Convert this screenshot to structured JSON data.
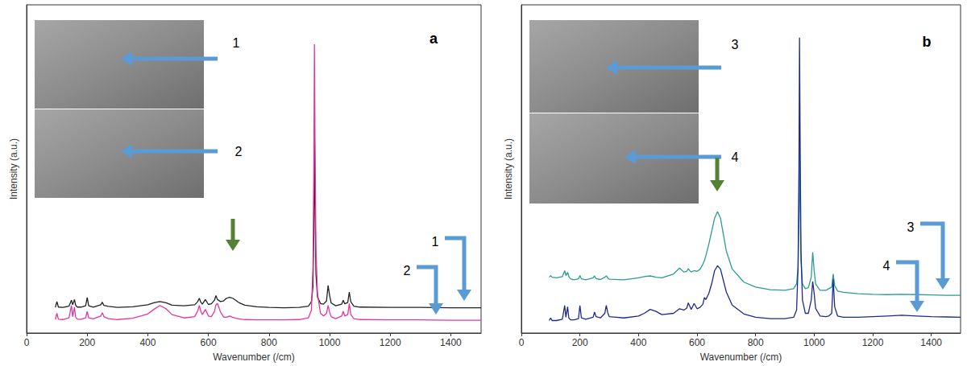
{
  "chart_data": [
    {
      "type": "line",
      "title": "a",
      "xlabel": "Wavenumber (/cm)",
      "ylabel": "Intensity (a.u.)",
      "x": [
        95,
        100,
        105,
        120,
        140,
        148,
        152,
        158,
        162,
        168,
        180,
        195,
        200,
        205,
        220,
        245,
        250,
        255,
        270,
        300,
        350,
        400,
        420,
        440,
        460,
        480,
        520,
        555,
        565,
        570,
        575,
        580,
        590,
        600,
        610,
        620,
        625,
        630,
        640,
        650,
        660,
        670,
        680,
        690,
        700,
        720,
        760,
        800,
        850,
        900,
        930,
        940,
        945,
        948,
        950,
        952,
        955,
        960,
        970,
        980,
        990,
        995,
        1000,
        1005,
        1020,
        1040,
        1045,
        1050,
        1060,
        1065,
        1070,
        1080,
        1100,
        1200,
        1300,
        1400,
        1500
      ],
      "series": [
        {
          "name": "1",
          "color": "#222222",
          "values": [
            7.8,
            9.6,
            7.9,
            7.8,
            8.2,
            10,
            8.6,
            10.2,
            8.4,
            7.9,
            7.9,
            8.3,
            10.8,
            8.3,
            7.9,
            8.6,
            9.4,
            8.4,
            8.1,
            7.8,
            8.0,
            8.6,
            9.2,
            9.6,
            9.2,
            8.5,
            8.3,
            8.6,
            9.6,
            10.6,
            9.4,
            8.8,
            10.2,
            8.7,
            8.9,
            10.0,
            11.4,
            10.2,
            9.6,
            9.8,
            10.6,
            10.9,
            10.6,
            10.0,
            9.3,
            8.5,
            8.0,
            7.8,
            7.7,
            7.8,
            8.2,
            9.5,
            14,
            30,
            65,
            40,
            18,
            11,
            9,
            8.8,
            9.8,
            14.5,
            11.5,
            9.2,
            8.3,
            8.8,
            10,
            8.9,
            9.3,
            12.5,
            9.5,
            8.2,
            7.9,
            7.8,
            7.8,
            7.7,
            7.7
          ]
        },
        {
          "name": "2",
          "color": "#e6369e",
          "values": [
            4.1,
            6,
            4.2,
            4.1,
            4.6,
            8.4,
            5.0,
            7.8,
            4.8,
            4.2,
            4.2,
            4.6,
            6.6,
            4.6,
            4.3,
            5.2,
            6.2,
            5.0,
            4.4,
            4.1,
            4.5,
            5.8,
            7.2,
            8.4,
            7.4,
            5.6,
            4.6,
            5.0,
            6.8,
            8.4,
            6.6,
            5.6,
            7.2,
            5.2,
            5.0,
            6.6,
            8.6,
            9.0,
            6.4,
            4.9,
            4.8,
            5.2,
            4.8,
            4.5,
            4.3,
            4.1,
            4.0,
            4.0,
            4.0,
            4.1,
            4.6,
            7,
            20,
            50,
            88,
            58,
            26,
            12,
            6,
            5.2,
            6,
            8.4,
            6.4,
            5,
            4.4,
            5.2,
            6.6,
            5.2,
            5.6,
            9,
            5.6,
            4.4,
            4.1,
            4.0,
            4.0,
            3.9,
            3.9
          ]
        }
      ],
      "xlim": [
        0,
        1500
      ],
      "xticks": [
        0,
        200,
        400,
        600,
        800,
        1000,
        1200,
        1400
      ],
      "ylim": [
        0,
        100
      ],
      "tick_labels": "x",
      "grid": false
    },
    {
      "type": "line",
      "title": "b",
      "xlabel": "Wavenumber (/cm)",
      "ylabel": "Intensity (a.u.)",
      "x": [
        95,
        100,
        105,
        120,
        140,
        148,
        152,
        158,
        162,
        168,
        180,
        195,
        200,
        205,
        220,
        245,
        250,
        255,
        270,
        285,
        290,
        295,
        300,
        350,
        400,
        420,
        440,
        460,
        480,
        520,
        540,
        555,
        565,
        570,
        575,
        580,
        590,
        600,
        610,
        620,
        625,
        630,
        640,
        650,
        660,
        670,
        680,
        690,
        700,
        720,
        760,
        800,
        850,
        900,
        930,
        940,
        945,
        948,
        950,
        952,
        955,
        960,
        970,
        980,
        990,
        995,
        1000,
        1005,
        1020,
        1040,
        1050,
        1060,
        1065,
        1070,
        1080,
        1100,
        1150,
        1200,
        1250,
        1300,
        1350,
        1400,
        1450,
        1500
      ],
      "series": [
        {
          "name": "3",
          "color": "#2a9d8f",
          "values": [
            17,
            17.5,
            17,
            16.8,
            17.2,
            19,
            17.5,
            18.5,
            17.2,
            16.5,
            16.2,
            16.5,
            17.5,
            16.5,
            16.2,
            16.8,
            17.4,
            16.6,
            16.3,
            17,
            17.4,
            16.8,
            16.4,
            16.2,
            16.8,
            17.2,
            17.4,
            17,
            16.8,
            18,
            19.8,
            18.6,
            18.8,
            19.6,
            19,
            18.6,
            19,
            18.8,
            19.4,
            21,
            22,
            23.5,
            27,
            31,
            35,
            37,
            35,
            30,
            25,
            19.5,
            15.5,
            14,
            13.2,
            13,
            13.5,
            15,
            20,
            35,
            59,
            40,
            22,
            15,
            13.5,
            13.8,
            17,
            24.6,
            19,
            15,
            13,
            13,
            13.5,
            14,
            18,
            14.5,
            12.8,
            12.4,
            12,
            11.8,
            11.7,
            11.8,
            11.7,
            11.6,
            11.5,
            11.5
          ]
        },
        {
          "name": "4",
          "color": "#1f2a8a",
          "values": [
            3.8,
            4.6,
            3.8,
            3.8,
            4.2,
            8.4,
            4.8,
            8.0,
            4.6,
            4.0,
            4.0,
            4.4,
            8.4,
            4.6,
            4.2,
            4.8,
            6.4,
            5.0,
            4.6,
            6.0,
            8.4,
            6.2,
            5.0,
            4.6,
            5.2,
            6.0,
            7.2,
            6.6,
            5.6,
            6.0,
            7.4,
            7.0,
            7.6,
            9.2,
            8.2,
            7.2,
            9.0,
            7.4,
            7.8,
            8.8,
            10.8,
            10.2,
            12,
            15,
            19,
            20.5,
            19.5,
            16,
            12.5,
            8.5,
            5.8,
            4.8,
            4.4,
            4.4,
            4.8,
            7,
            20,
            50,
            90,
            60,
            25,
            10,
            6,
            6,
            10,
            15.7,
            12,
            7.5,
            5.2,
            5,
            5.2,
            6,
            16.4,
            8,
            5.2,
            4.8,
            4.8,
            5.0,
            5.2,
            5.4,
            5.2,
            5.0,
            4.9,
            4.8
          ]
        }
      ],
      "xlim": [
        0,
        1500
      ],
      "xticks": [
        0,
        200,
        400,
        600,
        800,
        1000,
        1200,
        1400
      ],
      "ylim": [
        0,
        100
      ],
      "tick_labels": "x",
      "grid": false
    }
  ]
}
